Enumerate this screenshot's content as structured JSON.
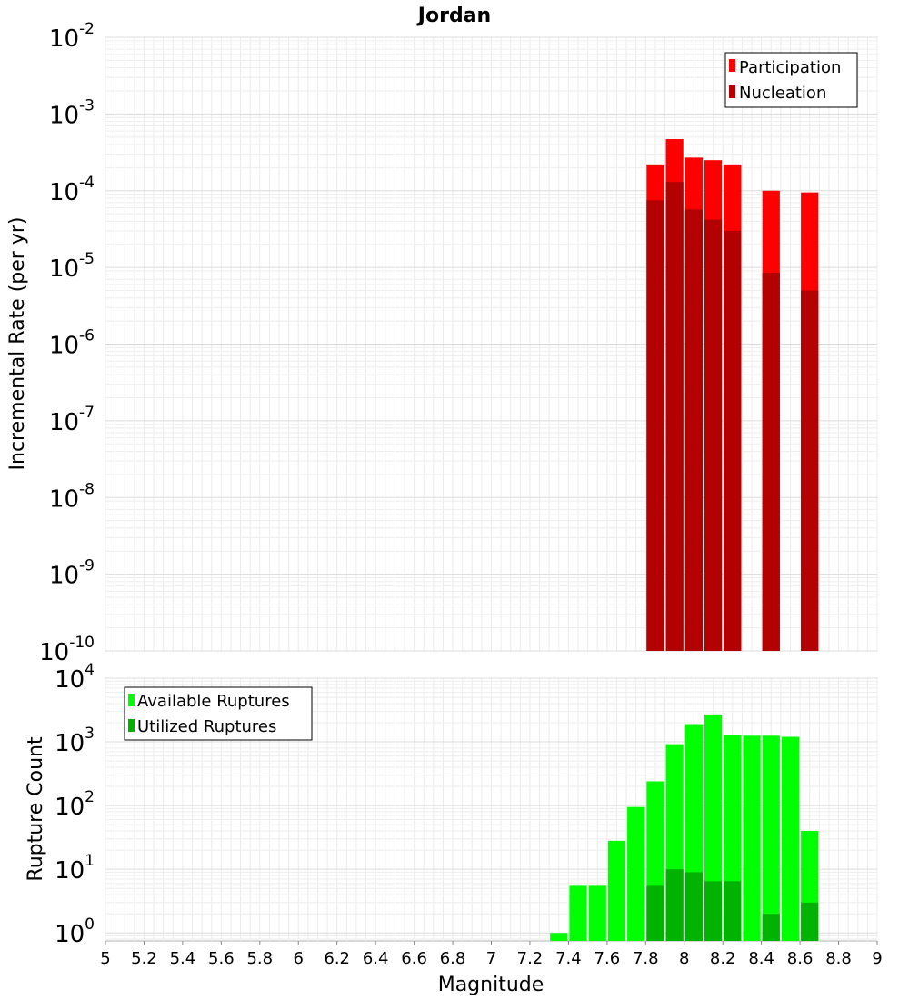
{
  "chart_data": [
    {
      "type": "bar",
      "title": "Jordan",
      "xlabel": "",
      "ylabel": "Incremental Rate (per yr)",
      "yscale": "log",
      "ylim": [
        1e-10,
        0.01
      ],
      "xlim": [
        5,
        9
      ],
      "y_ticks": [
        {
          "base": "10",
          "exp": "-10"
        },
        {
          "base": "10",
          "exp": "-9"
        },
        {
          "base": "10",
          "exp": "-8"
        },
        {
          "base": "10",
          "exp": "-7"
        },
        {
          "base": "10",
          "exp": "-6"
        },
        {
          "base": "10",
          "exp": "-5"
        },
        {
          "base": "10",
          "exp": "-4"
        },
        {
          "base": "10",
          "exp": "-3"
        },
        {
          "base": "10",
          "exp": "-2"
        }
      ],
      "grid": true,
      "legend_position": "top-right",
      "x": [
        7.85,
        7.95,
        8.05,
        8.15,
        8.25,
        8.45,
        8.65
      ],
      "series": [
        {
          "name": "Participation",
          "color": "#ff0000",
          "values": [
            0.00022,
            0.00047,
            0.00027,
            0.00025,
            0.00022,
            0.0001,
            9.5e-05
          ]
        },
        {
          "name": "Nucleation",
          "color": "#b30000",
          "values": [
            7.5e-05,
            0.00013,
            5.7e-05,
            4.2e-05,
            3e-05,
            8.5e-06,
            5e-06
          ]
        }
      ]
    },
    {
      "type": "bar",
      "title": "",
      "xlabel": "Magnitude",
      "ylabel": "Rupture Count",
      "yscale": "log",
      "ylim": [
        0.75,
        10000
      ],
      "xlim": [
        5,
        9
      ],
      "y_ticks": [
        {
          "base": "10",
          "exp": "0",
          "value": 1
        },
        {
          "base": "10",
          "exp": "1",
          "value": 10
        },
        {
          "base": "10",
          "exp": "2",
          "value": 100
        },
        {
          "base": "10",
          "exp": "3",
          "value": 1000
        },
        {
          "base": "10",
          "exp": "4",
          "value": 10000
        }
      ],
      "x_ticks": [
        "5",
        "5.2",
        "5.4",
        "5.6",
        "5.8",
        "6",
        "6.2",
        "6.4",
        "6.6",
        "6.8",
        "7",
        "7.2",
        "7.4",
        "7.6",
        "7.8",
        "8",
        "8.2",
        "8.4",
        "8.6",
        "8.8",
        "9"
      ],
      "grid": true,
      "legend_position": "top-left",
      "x": [
        7.35,
        7.45,
        7.55,
        7.65,
        7.75,
        7.85,
        7.95,
        8.05,
        8.15,
        8.25,
        8.35,
        8.45,
        8.55,
        8.65
      ],
      "series": [
        {
          "name": "Available Ruptures",
          "color": "#00ff00",
          "values": [
            1,
            5.5,
            5.5,
            28,
            95,
            240,
            920,
            1900,
            2700,
            1300,
            1250,
            1250,
            1200,
            40
          ]
        },
        {
          "name": "Utilized Ruptures",
          "color": "#00b300",
          "values": [
            null,
            null,
            null,
            null,
            null,
            5.5,
            10,
            9,
            6.5,
            6.5,
            null,
            2,
            null,
            3
          ]
        }
      ]
    }
  ]
}
